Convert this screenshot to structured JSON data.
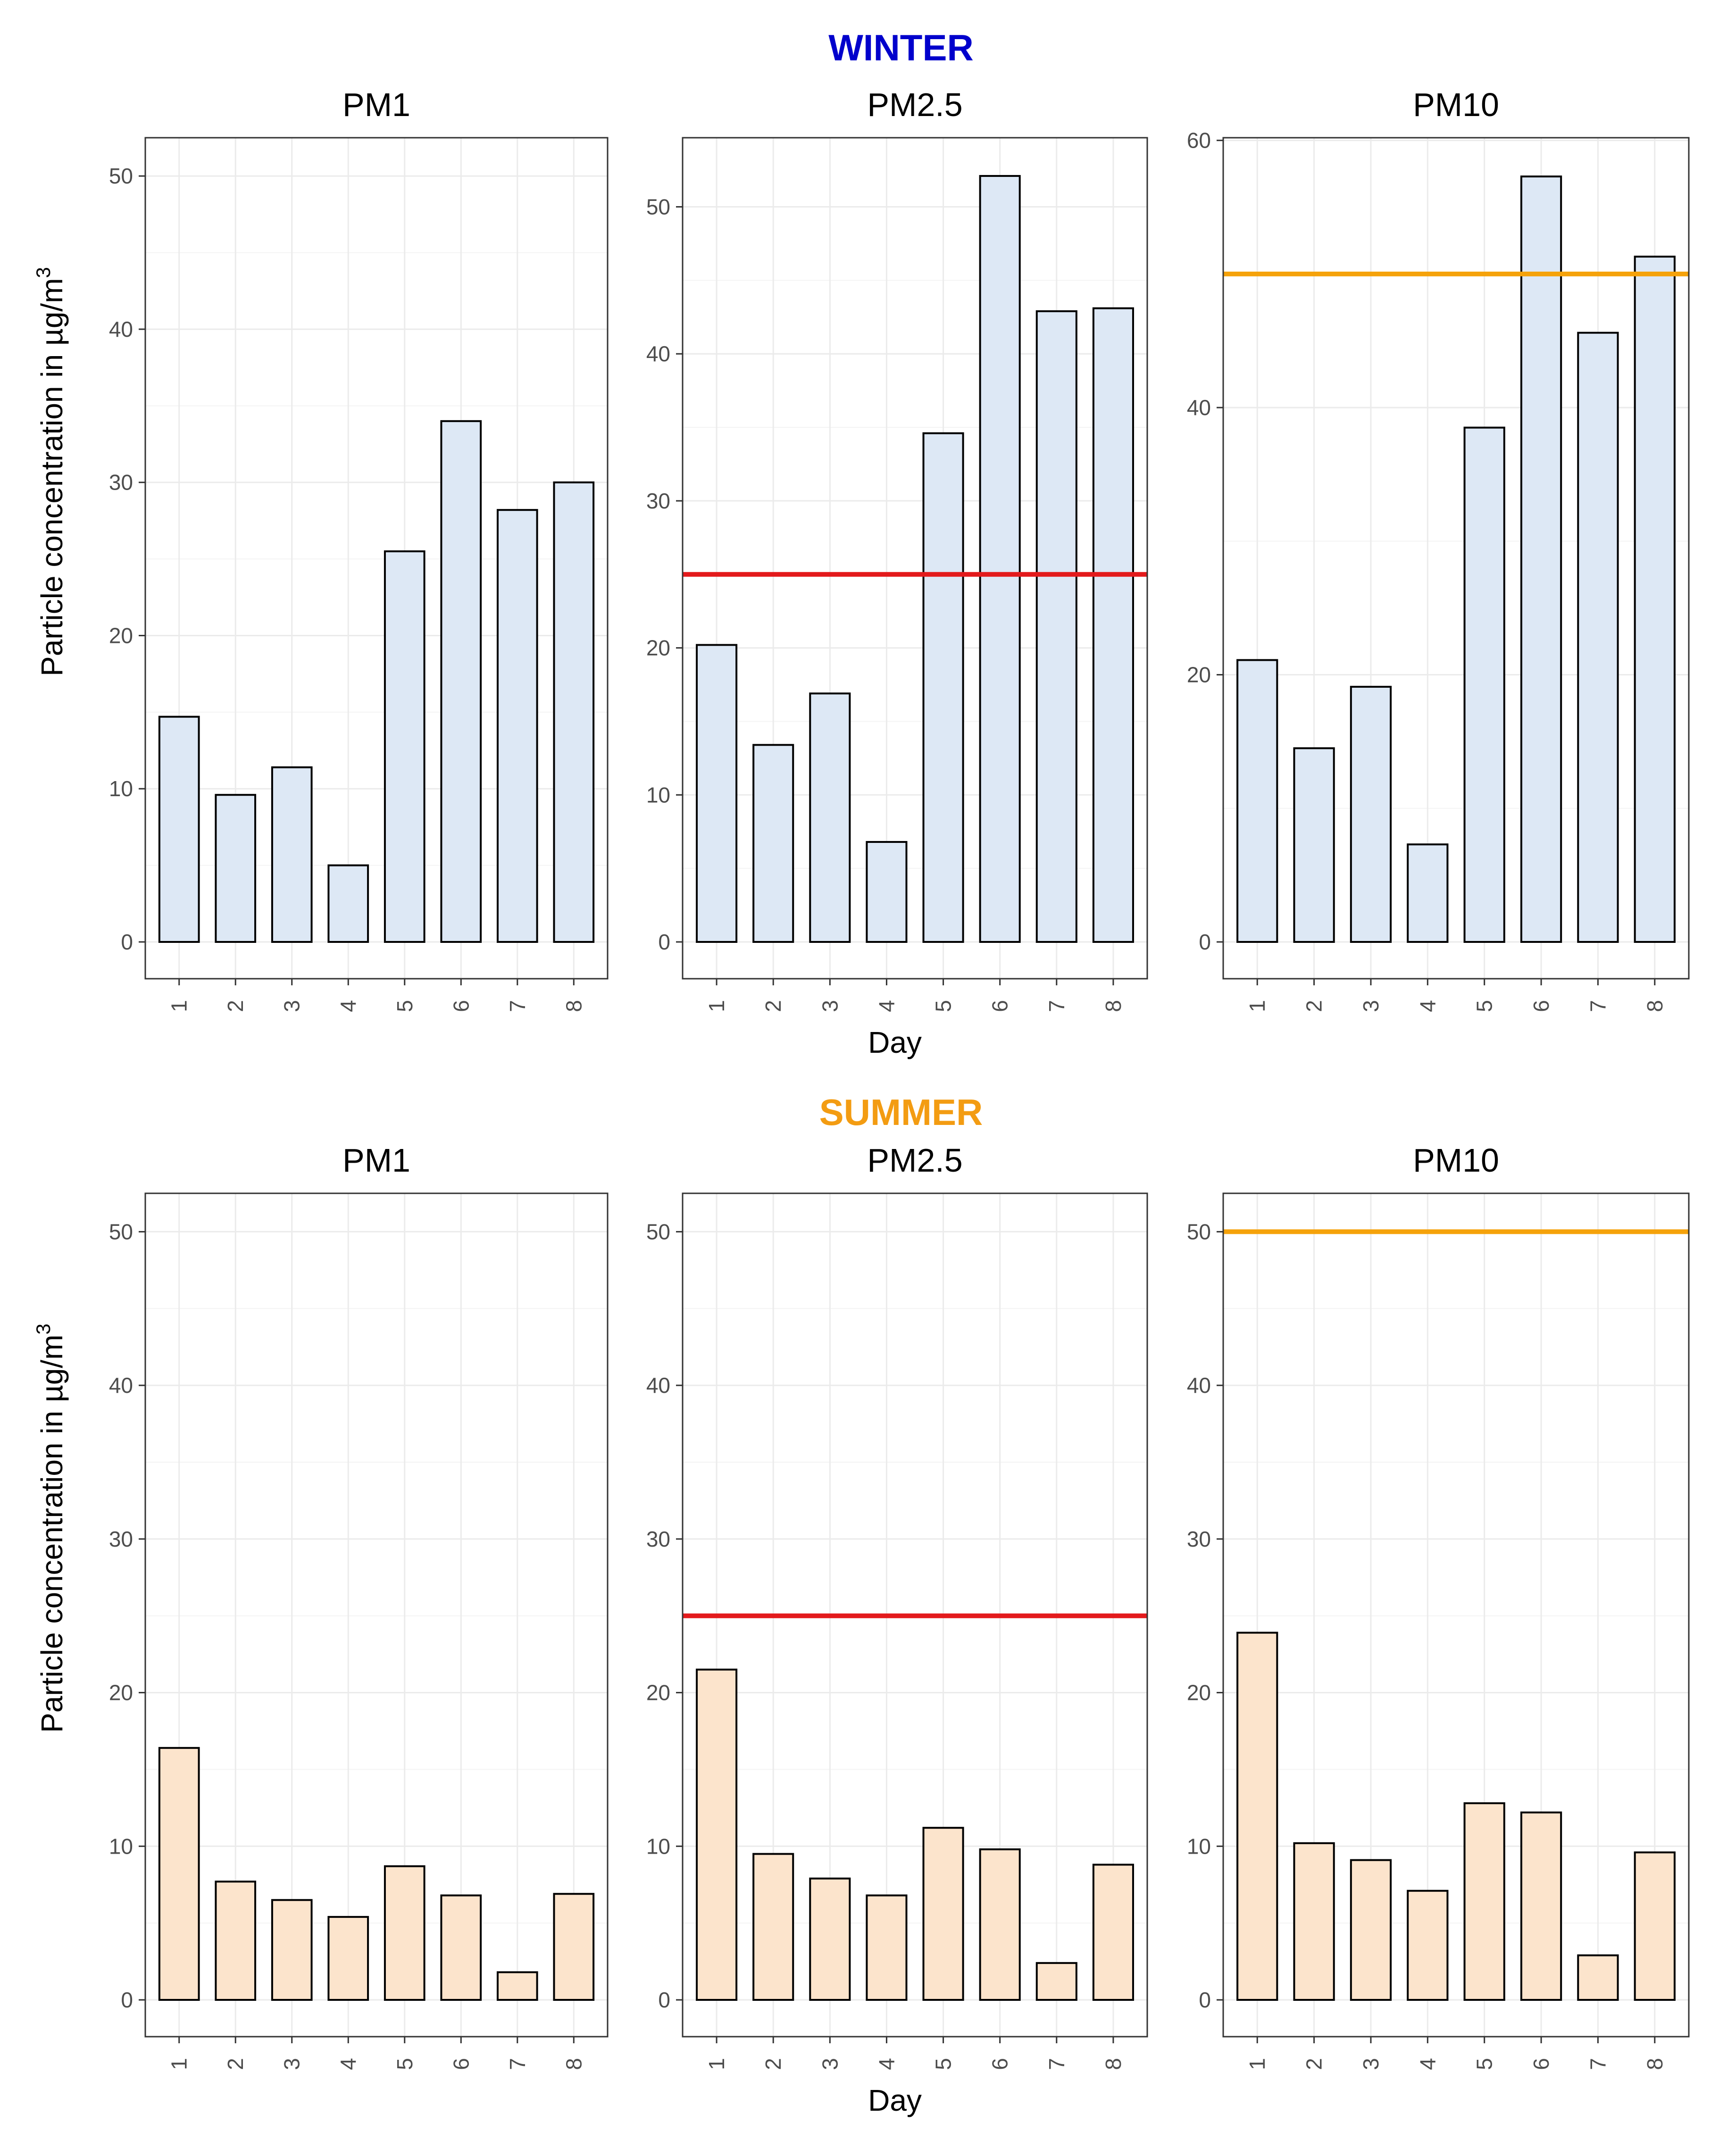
{
  "colors": {
    "winter_title": "#0000CC",
    "summer_title": "#F39C12",
    "winter_fill": "#DDE8F5",
    "summer_fill": "#FCE4CC",
    "pm25_limit": "#E31A1C",
    "pm10_limit": "#F5A20A"
  },
  "y_axis_label": "Particle concentration in µg/m",
  "y_axis_sup": "3",
  "x_axis_label": "Day",
  "chart_data": [
    {
      "type": "bar",
      "season": "WINTER",
      "title": "PM1",
      "categories": [
        "1",
        "2",
        "3",
        "4",
        "5",
        "6",
        "7",
        "8"
      ],
      "values": [
        14.7,
        9.6,
        11.4,
        5.0,
        25.5,
        34.0,
        28.2,
        30.0
      ],
      "ylim": [
        0,
        52.5
      ],
      "yticks": [
        0,
        10,
        20,
        30,
        40,
        50
      ],
      "xlabel": "Day",
      "ylabel": "Particle concentration in µg/m3",
      "limit": null
    },
    {
      "type": "bar",
      "season": "WINTER",
      "title": "PM2.5",
      "categories": [
        "1",
        "2",
        "3",
        "4",
        "5",
        "6",
        "7",
        "8"
      ],
      "values": [
        20.2,
        13.4,
        16.9,
        6.8,
        34.6,
        52.1,
        42.9,
        43.1
      ],
      "ylim": [
        0,
        54.7
      ],
      "yticks": [
        0,
        10,
        20,
        30,
        40,
        50
      ],
      "xlabel": "Day",
      "ylabel": "",
      "limit": 25
    },
    {
      "type": "bar",
      "season": "WINTER",
      "title": "PM10",
      "categories": [
        "1",
        "2",
        "3",
        "4",
        "5",
        "6",
        "7",
        "8"
      ],
      "values": [
        21.1,
        14.5,
        19.1,
        7.3,
        38.5,
        57.3,
        45.6,
        51.3
      ],
      "ylim": [
        0,
        60.2
      ],
      "yticks": [
        0,
        20,
        40,
        60
      ],
      "xlabel": "Day",
      "ylabel": "",
      "limit": 50
    },
    {
      "type": "bar",
      "season": "SUMMER",
      "title": "PM1",
      "categories": [
        "1",
        "2",
        "3",
        "4",
        "5",
        "6",
        "7",
        "8"
      ],
      "values": [
        16.4,
        7.7,
        6.5,
        5.4,
        8.7,
        6.8,
        1.8,
        6.9
      ],
      "ylim": [
        0,
        52.5
      ],
      "yticks": [
        0,
        10,
        20,
        30,
        40,
        50
      ],
      "xlabel": "Day",
      "ylabel": "Particle concentration in µg/m3",
      "limit": null
    },
    {
      "type": "bar",
      "season": "SUMMER",
      "title": "PM2.5",
      "categories": [
        "1",
        "2",
        "3",
        "4",
        "5",
        "6",
        "7",
        "8"
      ],
      "values": [
        21.5,
        9.5,
        7.9,
        6.8,
        11.2,
        9.8,
        2.4,
        8.8
      ],
      "ylim": [
        0,
        52.5
      ],
      "yticks": [
        0,
        10,
        20,
        30,
        40,
        50
      ],
      "xlabel": "Day",
      "ylabel": "",
      "limit": 25
    },
    {
      "type": "bar",
      "season": "SUMMER",
      "title": "PM10",
      "categories": [
        "1",
        "2",
        "3",
        "4",
        "5",
        "6",
        "7",
        "8"
      ],
      "values": [
        23.9,
        10.2,
        9.1,
        7.1,
        12.8,
        12.2,
        2.9,
        9.6
      ],
      "ylim": [
        0,
        52.5
      ],
      "yticks": [
        0,
        10,
        20,
        30,
        40,
        50
      ],
      "xlabel": "Day",
      "ylabel": "",
      "limit": 50
    }
  ]
}
